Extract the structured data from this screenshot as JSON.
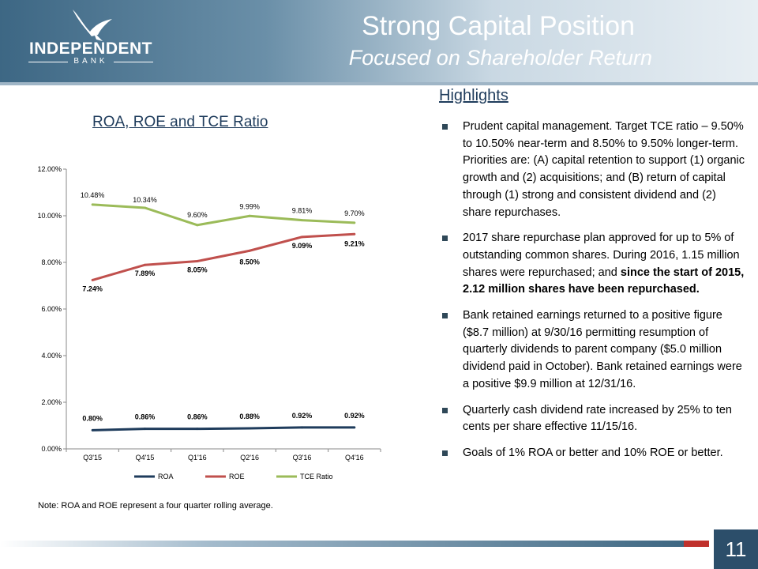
{
  "header": {
    "logo_name": "INDEPENDENT",
    "logo_sub": "BANK",
    "title": "Strong Capital Position",
    "subtitle": "Focused on Shareholder  Return"
  },
  "chart_title": "ROA, ROE and TCE Ratio",
  "note": "Note:  ROA and ROE represent a four quarter rolling average.",
  "highlights": {
    "title": "Highlights",
    "bullets": [
      {
        "text": "Prudent capital management.  Target TCE ratio – 9.50% to 10.50% near-term and 8.50% to 9.50% longer-term.   Priorities are: (A) capital retention to support (1) organic growth and (2) acquisitions; and (B) return of capital through (1) strong and consistent dividend and (2) share repurchases."
      },
      {
        "text": "2017 share repurchase plan approved for up to 5% of outstanding common shares. During 2016, 1.15 million shares were repurchased; and ",
        "bold": "since the start of 2015, 2.12 million shares have been repurchased."
      },
      {
        "text": "Bank retained earnings returned to a positive figure ($8.7 million) at 9/30/16 permitting resumption of quarterly dividends to parent company ($5.0 million dividend paid in October). Bank retained earnings were a positive $9.9 million at 12/31/16."
      },
      {
        "text": "Quarterly cash dividend rate increased by 25% to ten cents per share effective 11/15/16."
      },
      {
        "text": "Goals of 1% ROA or better and 10% ROE or better."
      }
    ]
  },
  "page_number": "11",
  "chart_data": {
    "type": "line",
    "title": "ROA, ROE and TCE Ratio",
    "categories": [
      "Q3'15",
      "Q4'15",
      "Q1'16",
      "Q2'16",
      "Q3'16",
      "Q4'16"
    ],
    "ylim": [
      0,
      12
    ],
    "yticks": [
      "0.00%",
      "2.00%",
      "4.00%",
      "6.00%",
      "8.00%",
      "10.00%",
      "12.00%"
    ],
    "grid": false,
    "legend": "bottom",
    "series": [
      {
        "name": "ROA",
        "color": "#1f3c5c",
        "values": [
          0.8,
          0.86,
          0.86,
          0.88,
          0.92,
          0.92
        ],
        "labels": [
          "0.80%",
          "0.86%",
          "0.86%",
          "0.88%",
          "0.92%",
          "0.92%"
        ]
      },
      {
        "name": "ROE",
        "color": "#c0504d",
        "values": [
          7.24,
          7.89,
          8.05,
          8.5,
          9.09,
          9.21
        ],
        "labels": [
          "7.24%",
          "7.89%",
          "8.05%",
          "8.50%",
          "9.09%",
          "9.21%"
        ]
      },
      {
        "name": "TCE Ratio",
        "color": "#9bbb59",
        "values": [
          10.48,
          10.34,
          9.6,
          9.99,
          9.81,
          9.7
        ],
        "labels": [
          "10.48%",
          "10.34%",
          "9.60%",
          "9.99%",
          "9.81%",
          "9.70%"
        ]
      }
    ]
  }
}
